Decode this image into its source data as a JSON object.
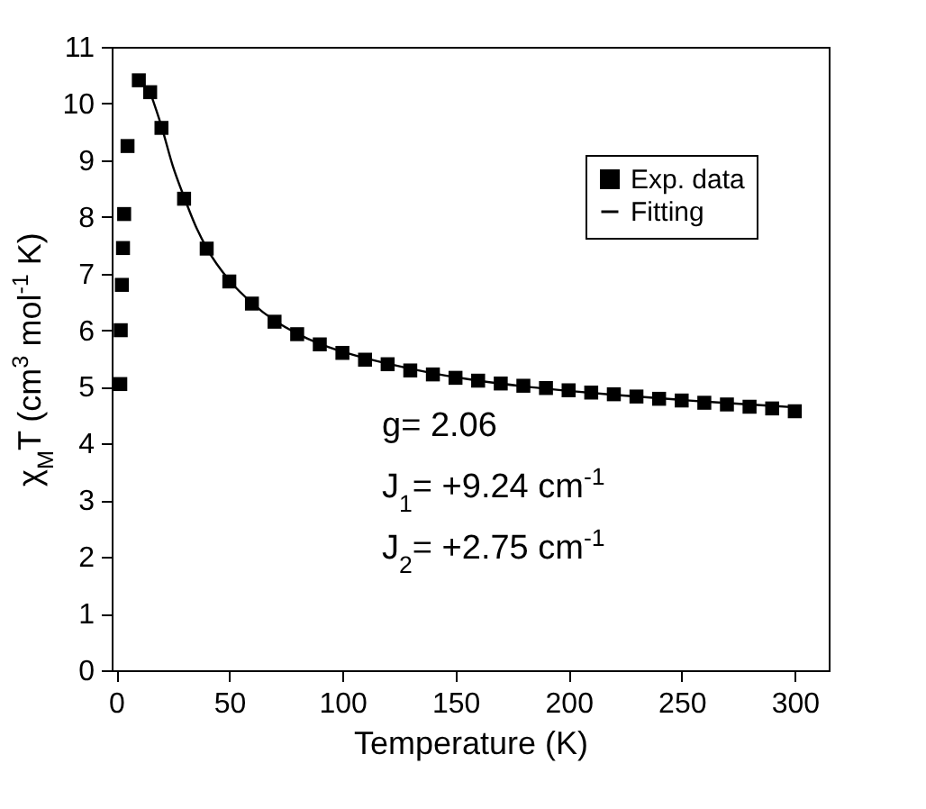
{
  "chart_data": {
    "type": "scatter",
    "xlabel": "Temperature (K)",
    "ylabel": "χ$_{M}$T (cm$^{3}$ mol$^{-1}$ K)",
    "xlim": [
      -2,
      315
    ],
    "xticks": [
      0,
      50,
      100,
      150,
      200,
      250,
      300
    ],
    "ylim": [
      0,
      11
    ],
    "yticks": [
      0,
      1,
      2,
      3,
      4,
      5,
      6,
      7,
      8,
      9,
      10,
      11
    ],
    "legend": "top right",
    "marker": "square",
    "grid": false,
    "annotations": [
      "g= 2.06",
      "J$_{1}$= +9.24 cm$^{-1}$",
      "J$_{2}$= +2.75 cm$^{-1}$"
    ],
    "series": [
      {
        "name": "Exp. data",
        "color": "#000000",
        "x": [
          1.8,
          2,
          2.5,
          3,
          3.5,
          5,
          10,
          15,
          20,
          30,
          40,
          50,
          60,
          70,
          80,
          90,
          100,
          110,
          120,
          130,
          140,
          150,
          160,
          170,
          180,
          190,
          200,
          210,
          220,
          230,
          240,
          250,
          260,
          270,
          280,
          290,
          300
        ],
        "values": [
          5.05,
          6.0,
          6.8,
          7.45,
          8.05,
          9.25,
          10.41,
          10.2,
          9.57,
          8.32,
          7.44,
          6.86,
          6.47,
          6.15,
          5.93,
          5.75,
          5.6,
          5.48,
          5.4,
          5.29,
          5.22,
          5.16,
          5.11,
          5.06,
          5.02,
          4.98,
          4.94,
          4.9,
          4.87,
          4.83,
          4.79,
          4.76,
          4.72,
          4.69,
          4.65,
          4.62,
          4.57
        ]
      },
      {
        "name": "Fitting",
        "type": "line",
        "color": "#000000",
        "marker": "none",
        "x": [
          15,
          20,
          25,
          30,
          35,
          40,
          50,
          60,
          70,
          80,
          90,
          100,
          120,
          140,
          160,
          180,
          200,
          220,
          240,
          260,
          280,
          300
        ],
        "values": [
          10.2,
          9.6,
          8.9,
          8.35,
          7.85,
          7.45,
          6.88,
          6.48,
          6.17,
          5.94,
          5.76,
          5.62,
          5.41,
          5.24,
          5.11,
          5.01,
          4.93,
          4.86,
          4.8,
          4.74,
          4.69,
          4.64
        ]
      }
    ]
  }
}
